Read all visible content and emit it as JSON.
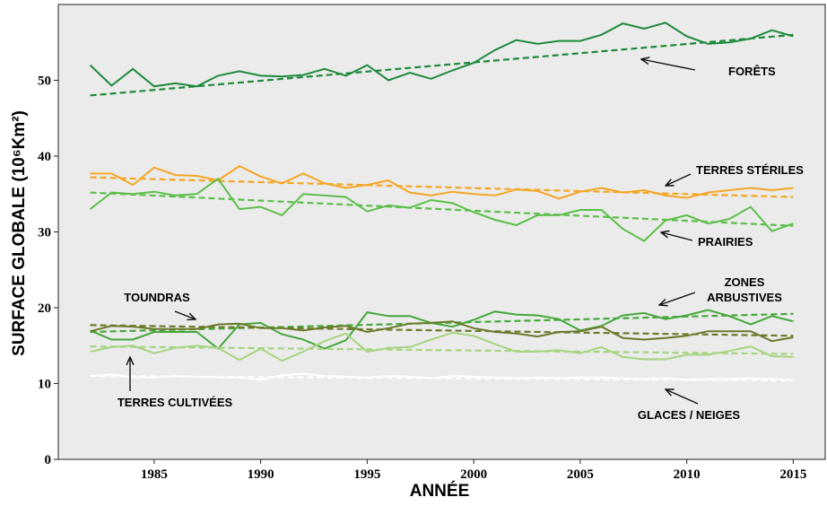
{
  "chart_data": {
    "type": "line",
    "xlabel": "ANNÉE",
    "ylabel": "SURFACE GLOBALE (10⁶Km²)",
    "x": [
      1982,
      1983,
      1984,
      1985,
      1986,
      1987,
      1988,
      1989,
      1990,
      1991,
      1992,
      1993,
      1994,
      1995,
      1996,
      1997,
      1998,
      1999,
      2000,
      2001,
      2002,
      2003,
      2004,
      2005,
      2006,
      2007,
      2008,
      2009,
      2010,
      2011,
      2012,
      2013,
      2014,
      2015
    ],
    "xlim": [
      1980.5,
      2016.5
    ],
    "xticks": [
      1985,
      1990,
      1995,
      2000,
      2005,
      2010,
      2015
    ],
    "ylim": [
      0,
      60
    ],
    "yticks": [
      0,
      10,
      20,
      30,
      40,
      50
    ],
    "series": [
      {
        "name": "FORÊTS",
        "color": "#1e8a3c",
        "values": [
          52,
          49.3,
          51.5,
          49.2,
          49.6,
          49.2,
          50.6,
          51.2,
          50.6,
          50.5,
          50.7,
          51.5,
          50.6,
          52,
          50,
          51,
          50.2,
          51.3,
          52.3,
          54,
          55.3,
          54.8,
          55.2,
          55.2,
          56,
          57.5,
          56.8,
          57.6,
          55.8,
          54.8,
          55,
          55.5,
          56.6,
          55.8
        ],
        "trend": {
          "x": [
            1982,
            2015
          ],
          "values": [
            48,
            56
          ]
        }
      },
      {
        "name": "TERRES STÉRILES",
        "color": "#f5a623",
        "values": [
          37.7,
          37.7,
          36.2,
          38.5,
          37.5,
          37.4,
          36.8,
          38.7,
          37.3,
          36.4,
          37.7,
          36.4,
          35.8,
          36.2,
          36.8,
          35.2,
          34.8,
          35.3,
          35,
          34.8,
          35.6,
          35.4,
          34.4,
          35.3,
          35.8,
          35.2,
          35.5,
          34.8,
          34.5,
          35.2,
          35.5,
          35.8,
          35.5,
          35.8
        ],
        "trend": {
          "x": [
            1982,
            2015
          ],
          "values": [
            37.2,
            34.6
          ]
        }
      },
      {
        "name": "PRAIRIES",
        "color": "#5cbf4a",
        "values": [
          33,
          35.2,
          35,
          35.3,
          34.8,
          35,
          37,
          33,
          33.3,
          32.2,
          35,
          34.8,
          34.6,
          32.7,
          33.5,
          33.2,
          34.2,
          33.8,
          32.6,
          31.6,
          30.9,
          32.2,
          32.2,
          32.9,
          32.9,
          30.4,
          28.8,
          31.5,
          32.2,
          31.1,
          31.7,
          33.3,
          30.1,
          31.1
        ],
        "trend": {
          "x": [
            1982,
            2015
          ],
          "values": [
            35.2,
            30.8
          ]
        }
      },
      {
        "name": "ZONES ARBUSTIVES",
        "color": "#45a83a",
        "values": [
          17,
          15.8,
          15.8,
          16.8,
          16.8,
          16.8,
          14.6,
          17.8,
          18,
          16.5,
          15.8,
          14.6,
          15.7,
          19.4,
          18.9,
          18.9,
          18,
          17.5,
          18.4,
          19.5,
          19.1,
          19,
          18.5,
          17,
          17.6,
          19,
          19.3,
          18.5,
          19,
          19.7,
          18.9,
          17.8,
          18.9,
          18.2
        ],
        "trend": {
          "x": [
            1982,
            2015
          ],
          "values": [
            16.8,
            19.2
          ]
        }
      },
      {
        "name": "TOUNDRAS",
        "color": "#6b7a2a",
        "values": [
          16.9,
          17.6,
          17.5,
          17.2,
          17.2,
          17.2,
          17.8,
          17.9,
          17.3,
          17.3,
          17,
          17.4,
          17.6,
          16.8,
          17.3,
          17.9,
          18,
          18.2,
          17.3,
          16.8,
          16.6,
          16.2,
          16.8,
          16.9,
          17.5,
          16,
          15.8,
          16,
          16.3,
          16.9,
          16.9,
          16.9,
          15.6,
          16.1
        ],
        "trend": {
          "x": [
            1982,
            2015
          ],
          "values": [
            17.7,
            16.3
          ]
        }
      },
      {
        "name": "TERRES CULTIVÉES",
        "color": "#a6d480",
        "values": [
          14.2,
          14.8,
          15,
          14,
          14.7,
          15,
          14.7,
          13.1,
          14.6,
          13,
          14.2,
          15.6,
          16.6,
          14.2,
          14.7,
          14.8,
          15.8,
          16.7,
          16.3,
          15.2,
          14.2,
          14.2,
          14.4,
          14,
          14.8,
          13.5,
          13.2,
          13.2,
          13.8,
          13.8,
          14.3,
          14.9,
          13.6,
          13.5
        ],
        "trend": {
          "x": [
            1982,
            2015
          ],
          "values": [
            14.9,
            13.9
          ]
        }
      },
      {
        "name": "GLACES / NEIGES",
        "color": "#ffffff",
        "values": [
          11,
          11.2,
          10.8,
          10.8,
          11,
          10.9,
          10.8,
          10.8,
          10.5,
          11.1,
          11.3,
          11,
          10.9,
          10.8,
          11,
          10.9,
          10.7,
          11,
          10.9,
          10.8,
          10.7,
          10.8,
          10.7,
          10.8,
          10.8,
          10.7,
          10.6,
          10.7,
          10.5,
          10.6,
          10.6,
          10.7,
          10.6,
          10.5
        ],
        "trend": {
          "x": [
            1982,
            2015
          ],
          "values": [
            11,
            10.4
          ]
        }
      }
    ]
  }
}
